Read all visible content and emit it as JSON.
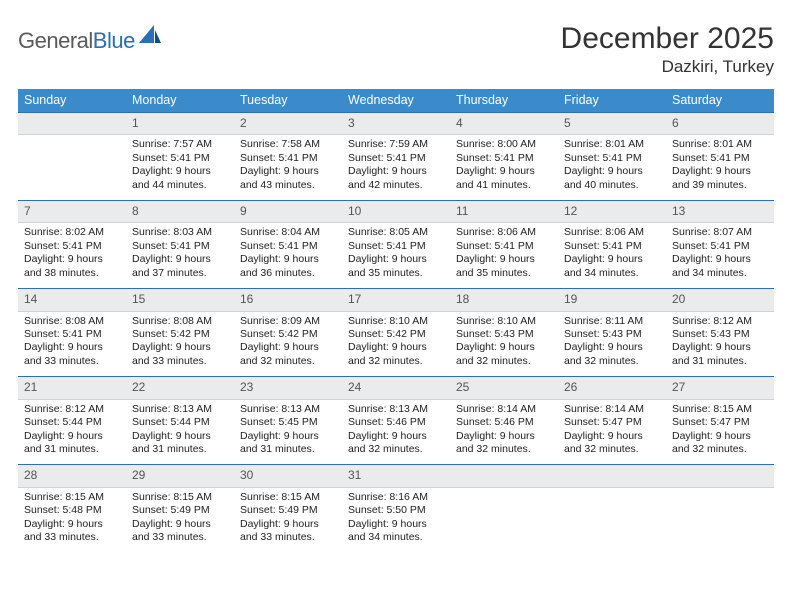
{
  "brand": {
    "name_a": "General",
    "name_b": "Blue"
  },
  "title": "December 2025",
  "location": "Dazkiri, Turkey",
  "colors": {
    "header_bg": "#3b8bca",
    "header_text": "#ffffff",
    "daynum_bg": "#e9ebec",
    "daynum_border_top": "#2a6fb5",
    "text": "#222222",
    "logo_gray": "#5a5a5a",
    "logo_blue": "#2a6fb5"
  },
  "weekdays": [
    "Sunday",
    "Monday",
    "Tuesday",
    "Wednesday",
    "Thursday",
    "Friday",
    "Saturday"
  ],
  "weeks": [
    [
      null,
      {
        "n": "1",
        "sr": "7:57 AM",
        "ss": "5:41 PM",
        "dl": "Daylight: 9 hours and 44 minutes."
      },
      {
        "n": "2",
        "sr": "7:58 AM",
        "ss": "5:41 PM",
        "dl": "Daylight: 9 hours and 43 minutes."
      },
      {
        "n": "3",
        "sr": "7:59 AM",
        "ss": "5:41 PM",
        "dl": "Daylight: 9 hours and 42 minutes."
      },
      {
        "n": "4",
        "sr": "8:00 AM",
        "ss": "5:41 PM",
        "dl": "Daylight: 9 hours and 41 minutes."
      },
      {
        "n": "5",
        "sr": "8:01 AM",
        "ss": "5:41 PM",
        "dl": "Daylight: 9 hours and 40 minutes."
      },
      {
        "n": "6",
        "sr": "8:01 AM",
        "ss": "5:41 PM",
        "dl": "Daylight: 9 hours and 39 minutes."
      }
    ],
    [
      {
        "n": "7",
        "sr": "8:02 AM",
        "ss": "5:41 PM",
        "dl": "Daylight: 9 hours and 38 minutes."
      },
      {
        "n": "8",
        "sr": "8:03 AM",
        "ss": "5:41 PM",
        "dl": "Daylight: 9 hours and 37 minutes."
      },
      {
        "n": "9",
        "sr": "8:04 AM",
        "ss": "5:41 PM",
        "dl": "Daylight: 9 hours and 36 minutes."
      },
      {
        "n": "10",
        "sr": "8:05 AM",
        "ss": "5:41 PM",
        "dl": "Daylight: 9 hours and 35 minutes."
      },
      {
        "n": "11",
        "sr": "8:06 AM",
        "ss": "5:41 PM",
        "dl": "Daylight: 9 hours and 35 minutes."
      },
      {
        "n": "12",
        "sr": "8:06 AM",
        "ss": "5:41 PM",
        "dl": "Daylight: 9 hours and 34 minutes."
      },
      {
        "n": "13",
        "sr": "8:07 AM",
        "ss": "5:41 PM",
        "dl": "Daylight: 9 hours and 34 minutes."
      }
    ],
    [
      {
        "n": "14",
        "sr": "8:08 AM",
        "ss": "5:41 PM",
        "dl": "Daylight: 9 hours and 33 minutes."
      },
      {
        "n": "15",
        "sr": "8:08 AM",
        "ss": "5:42 PM",
        "dl": "Daylight: 9 hours and 33 minutes."
      },
      {
        "n": "16",
        "sr": "8:09 AM",
        "ss": "5:42 PM",
        "dl": "Daylight: 9 hours and 32 minutes."
      },
      {
        "n": "17",
        "sr": "8:10 AM",
        "ss": "5:42 PM",
        "dl": "Daylight: 9 hours and 32 minutes."
      },
      {
        "n": "18",
        "sr": "8:10 AM",
        "ss": "5:43 PM",
        "dl": "Daylight: 9 hours and 32 minutes."
      },
      {
        "n": "19",
        "sr": "8:11 AM",
        "ss": "5:43 PM",
        "dl": "Daylight: 9 hours and 32 minutes."
      },
      {
        "n": "20",
        "sr": "8:12 AM",
        "ss": "5:43 PM",
        "dl": "Daylight: 9 hours and 31 minutes."
      }
    ],
    [
      {
        "n": "21",
        "sr": "8:12 AM",
        "ss": "5:44 PM",
        "dl": "Daylight: 9 hours and 31 minutes."
      },
      {
        "n": "22",
        "sr": "8:13 AM",
        "ss": "5:44 PM",
        "dl": "Daylight: 9 hours and 31 minutes."
      },
      {
        "n": "23",
        "sr": "8:13 AM",
        "ss": "5:45 PM",
        "dl": "Daylight: 9 hours and 31 minutes."
      },
      {
        "n": "24",
        "sr": "8:13 AM",
        "ss": "5:46 PM",
        "dl": "Daylight: 9 hours and 32 minutes."
      },
      {
        "n": "25",
        "sr": "8:14 AM",
        "ss": "5:46 PM",
        "dl": "Daylight: 9 hours and 32 minutes."
      },
      {
        "n": "26",
        "sr": "8:14 AM",
        "ss": "5:47 PM",
        "dl": "Daylight: 9 hours and 32 minutes."
      },
      {
        "n": "27",
        "sr": "8:15 AM",
        "ss": "5:47 PM",
        "dl": "Daylight: 9 hours and 32 minutes."
      }
    ],
    [
      {
        "n": "28",
        "sr": "8:15 AM",
        "ss": "5:48 PM",
        "dl": "Daylight: 9 hours and 33 minutes."
      },
      {
        "n": "29",
        "sr": "8:15 AM",
        "ss": "5:49 PM",
        "dl": "Daylight: 9 hours and 33 minutes."
      },
      {
        "n": "30",
        "sr": "8:15 AM",
        "ss": "5:49 PM",
        "dl": "Daylight: 9 hours and 33 minutes."
      },
      {
        "n": "31",
        "sr": "8:16 AM",
        "ss": "5:50 PM",
        "dl": "Daylight: 9 hours and 34 minutes."
      },
      null,
      null,
      null
    ]
  ]
}
